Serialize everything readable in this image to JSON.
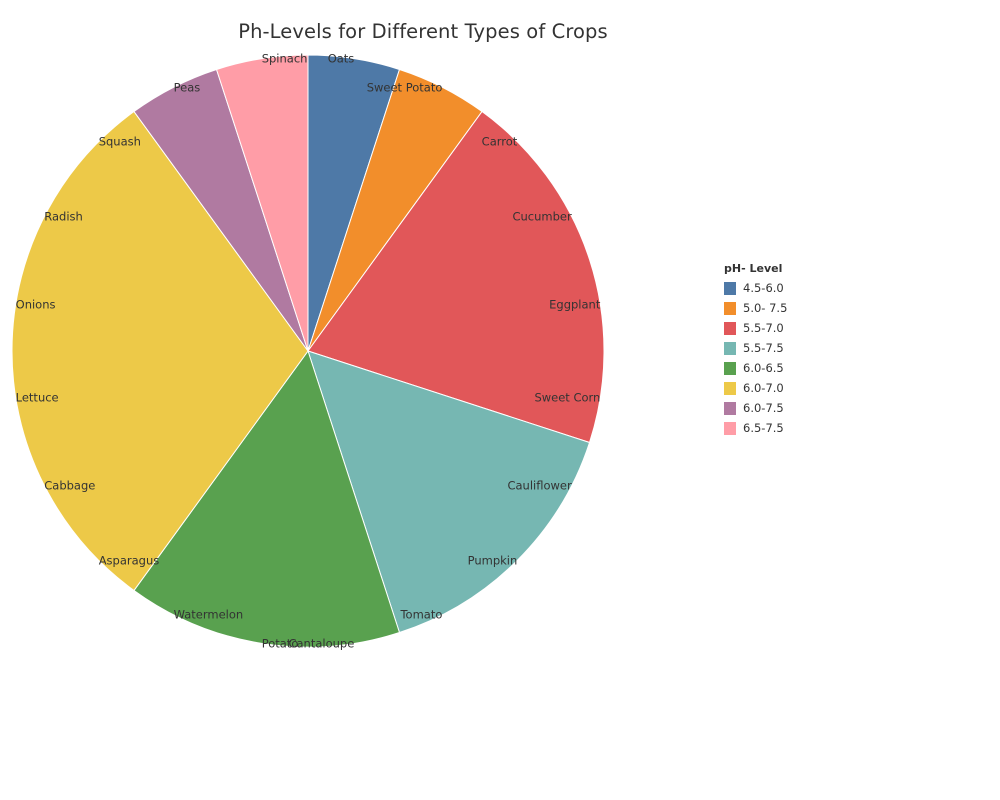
{
  "chart_data": {
    "type": "pie",
    "title": "Ph-Levels for Different Types of Crops",
    "legend_title": "pH- Level",
    "legend_position": "right",
    "crop_labels": [
      "Oats",
      "Sweet Potato",
      "Carrot",
      "Cucumber",
      "Eggplant",
      "Sweet Corn",
      "Cauliflower",
      "Pumpkin",
      "Tomato",
      "Cantaloupe",
      "Potato",
      "Watermelon",
      "Asparagus",
      "Cabbage",
      "Lettuce",
      "Onions",
      "Radish",
      "Squash",
      "Peas",
      "Spinach"
    ],
    "slices": [
      {
        "label": "4.5-6.0",
        "color": "#4e79a7",
        "count": 1,
        "crops": [
          "Oats"
        ]
      },
      {
        "label": "5.0- 7.5",
        "color": "#f28e2b",
        "count": 1,
        "crops": [
          "Sweet Potato"
        ]
      },
      {
        "label": "5.5-7.0",
        "color": "#e15759",
        "count": 4,
        "crops": [
          "Carrot",
          "Cucumber",
          "Eggplant",
          "Sweet Corn"
        ]
      },
      {
        "label": "5.5-7.5",
        "color": "#76b7b2",
        "count": 3,
        "crops": [
          "Cauliflower",
          "Pumpkin",
          "Tomato"
        ]
      },
      {
        "label": "6.0-6.5",
        "color": "#59a14f",
        "count": 3,
        "crops": [
          "Cantaloupe",
          "Potato",
          "Watermelon"
        ]
      },
      {
        "label": "6.0-7.0",
        "color": "#edc948",
        "count": 6,
        "crops": [
          "Asparagus",
          "Cabbage",
          "Lettuce",
          "Onions",
          "Radish",
          "Squash"
        ]
      },
      {
        "label": "6.0-7.5",
        "color": "#b07aa1",
        "count": 1,
        "crops": [
          "Peas"
        ]
      },
      {
        "label": "6.5-7.5",
        "color": "#ff9da7",
        "count": 1,
        "crops": [
          "Spinach"
        ]
      }
    ]
  }
}
